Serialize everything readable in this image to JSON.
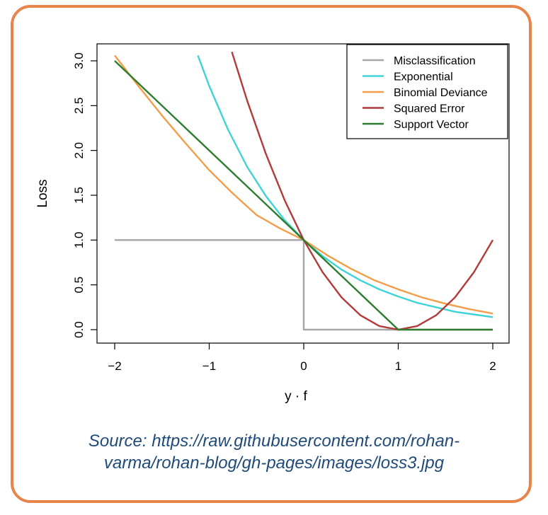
{
  "caption": {
    "line1": "Source: https://raw.githubusercontent.com/rohan-",
    "line2": "varma/rohan-blog/gh-pages/images/loss3.jpg"
  },
  "colors": {
    "frame": "#e8834a",
    "caption": "#1f4a7a"
  },
  "chart_data": {
    "type": "line",
    "title": "",
    "xlabel": "y · f",
    "ylabel": "Loss",
    "xlim": [
      -2,
      2
    ],
    "ylim": [
      0,
      3
    ],
    "xticks": [
      "−2",
      "−1",
      "0",
      "1",
      "2"
    ],
    "yticks": [
      "0.0",
      "0.5",
      "1.0",
      "1.5",
      "2.0",
      "2.5",
      "3.0"
    ],
    "grid": false,
    "legend_position": "top-right",
    "series": [
      {
        "name": "Misclassification",
        "color": "#a6a6a6",
        "x": [
          -2,
          0,
          0,
          2
        ],
        "y": [
          1,
          1,
          0,
          0
        ]
      },
      {
        "name": "Exponential",
        "color": "#3fd3d8",
        "x": [
          -1.12,
          -1.0,
          -0.8,
          -0.6,
          -0.4,
          -0.2,
          0.0,
          0.2,
          0.4,
          0.6,
          0.8,
          1.0,
          1.2,
          1.4,
          1.6,
          1.8,
          2.0
        ],
        "y": [
          3.06,
          2.72,
          2.23,
          1.82,
          1.49,
          1.22,
          1.0,
          0.82,
          0.67,
          0.55,
          0.45,
          0.37,
          0.3,
          0.25,
          0.2,
          0.17,
          0.14
        ]
      },
      {
        "name": "Binomial Deviance",
        "color": "#f29d4a",
        "x": [
          -2.0,
          -1.75,
          -1.5,
          -1.25,
          -1.0,
          -0.75,
          -0.5,
          -0.25,
          0.0,
          0.25,
          0.5,
          0.75,
          1.0,
          1.25,
          1.5,
          1.75,
          2.0
        ],
        "y": [
          3.06,
          2.72,
          2.39,
          2.08,
          1.78,
          1.52,
          1.28,
          1.13,
          1.0,
          0.83,
          0.68,
          0.55,
          0.45,
          0.36,
          0.29,
          0.23,
          0.18
        ]
      },
      {
        "name": "Squared Error",
        "color": "#b33a3a",
        "x": [
          -0.76,
          -0.6,
          -0.4,
          -0.2,
          0.0,
          0.2,
          0.4,
          0.6,
          0.8,
          1.0,
          1.2,
          1.4,
          1.6,
          1.8,
          2.0
        ],
        "y": [
          3.1,
          2.56,
          1.96,
          1.44,
          1.0,
          0.64,
          0.36,
          0.16,
          0.04,
          0.0,
          0.04,
          0.16,
          0.36,
          0.64,
          1.0
        ]
      },
      {
        "name": "Support Vector",
        "color": "#2e7d2e",
        "x": [
          -2,
          1,
          2
        ],
        "y": [
          3,
          0,
          0
        ]
      }
    ]
  }
}
